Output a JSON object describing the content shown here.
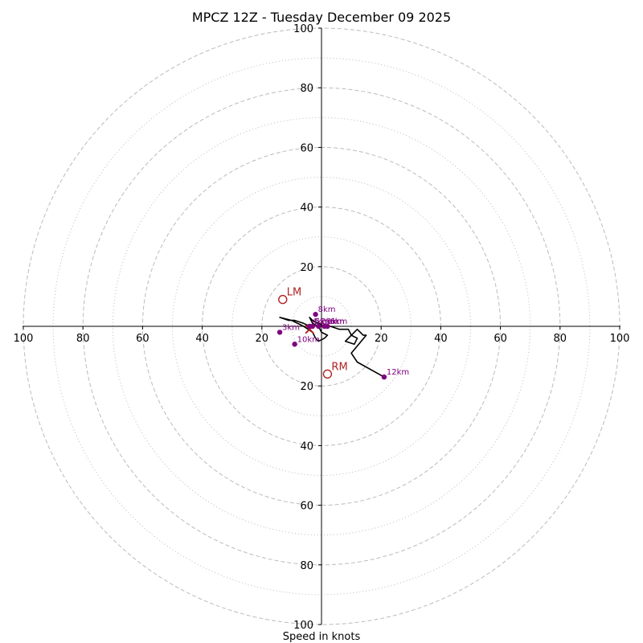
{
  "chart_data": {
    "type": "scatter",
    "title": "MPCZ 12Z - Tuesday December 09 2025",
    "xlabel": "Speed in knots",
    "ylabel": "",
    "xlim": [
      -100,
      100
    ],
    "ylim": [
      -100,
      100
    ],
    "grid": true,
    "ring_major": [
      20,
      40,
      60,
      80,
      100
    ],
    "ring_minor": [
      10,
      30,
      50,
      70,
      90
    ],
    "tick_values": [
      100,
      80,
      60,
      40,
      20
    ],
    "hodograph_u": [
      -4,
      -6,
      -9,
      -11,
      -14,
      -10,
      -6,
      -3,
      -2,
      -1,
      1,
      2,
      0,
      -1,
      -3,
      -4,
      -3,
      1,
      3,
      6,
      9,
      10,
      12,
      11,
      8,
      12,
      14,
      15,
      10,
      12,
      21
    ],
    "hodograph_v": [
      0,
      1,
      2,
      2,
      3,
      2,
      0,
      -2,
      -4,
      -5,
      -4,
      -3,
      -2,
      0,
      1,
      3,
      2,
      0,
      0,
      -1,
      -1,
      -3,
      -4,
      -6,
      -5,
      -1,
      -3,
      -3,
      -9,
      -12,
      -17
    ],
    "height_points": [
      {
        "label": "1km",
        "u": 1,
        "v": 0
      },
      {
        "label": "2km",
        "u": -1,
        "v": 0
      },
      {
        "label": "3km",
        "u": -14,
        "v": -2
      },
      {
        "label": "4km",
        "u": -4,
        "v": 0
      },
      {
        "label": "5km",
        "u": -3,
        "v": 0
      },
      {
        "label": "6km",
        "u": 2,
        "v": 0
      },
      {
        "label": "8km",
        "u": -2,
        "v": 4
      },
      {
        "label": "10km",
        "u": -9,
        "v": -6
      },
      {
        "label": "12km",
        "u": 21,
        "v": -17
      }
    ],
    "storm_motion": [
      {
        "label": "LM",
        "u": -13,
        "v": 9
      },
      {
        "label": "RM",
        "u": 2,
        "v": -16
      }
    ],
    "mean_wind": {
      "u": -4,
      "v": -1
    },
    "colors": {
      "hodograph": "#000000",
      "height_points": "#800080",
      "storm_motion": "#b22222",
      "grid": "#bbbbbb"
    }
  }
}
